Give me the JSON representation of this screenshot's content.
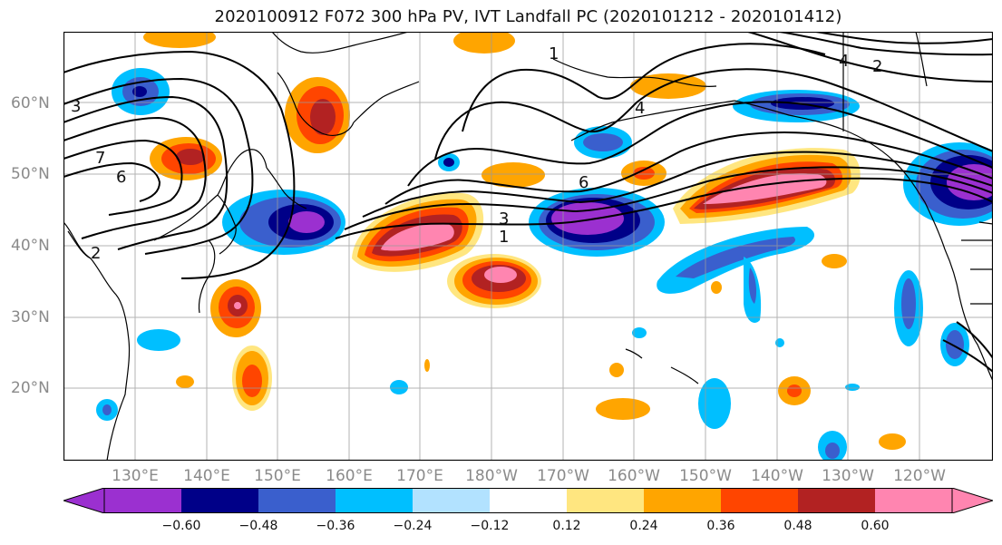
{
  "title": "2020100912 F072 300 hPa PV, IVT Landfall PC (2020101212 - 2020101412)",
  "map": {
    "lat_ticks": [
      {
        "label": "60°N"
      },
      {
        "label": "50°N"
      },
      {
        "label": "40°N"
      },
      {
        "label": "30°N"
      },
      {
        "label": "20°N"
      }
    ],
    "lon_ticks": [
      {
        "label": "130°E"
      },
      {
        "label": "140°E"
      },
      {
        "label": "150°E"
      },
      {
        "label": "160°E"
      },
      {
        "label": "170°E"
      },
      {
        "label": "180°W"
      },
      {
        "label": "170°W"
      },
      {
        "label": "160°W"
      },
      {
        "label": "150°W"
      },
      {
        "label": "140°W"
      },
      {
        "label": "130°W"
      },
      {
        "label": "120°W"
      }
    ],
    "contour_labels": [
      {
        "text": "1"
      },
      {
        "text": "3"
      },
      {
        "text": "6"
      },
      {
        "text": "1"
      },
      {
        "text": "4"
      },
      {
        "text": "7"
      },
      {
        "text": "2"
      },
      {
        "text": "3"
      },
      {
        "text": "6"
      },
      {
        "text": "4"
      },
      {
        "text": "2"
      }
    ]
  },
  "colorbar": {
    "colors": [
      "#9b30d0",
      "#000088",
      "#3a5fcd",
      "#00bfff",
      "#b2e2ff",
      "#ffffff",
      "#ffe680",
      "#ffa500",
      "#ff4500",
      "#b22222",
      "#ff85b0"
    ],
    "under_color": "#9b30d0",
    "over_color": "#ff85b0",
    "tick_labels": [
      "−0.60",
      "−0.48",
      "−0.36",
      "−0.24",
      "−0.12",
      "0.12",
      "0.24",
      "0.36",
      "0.48",
      "0.60"
    ]
  }
}
